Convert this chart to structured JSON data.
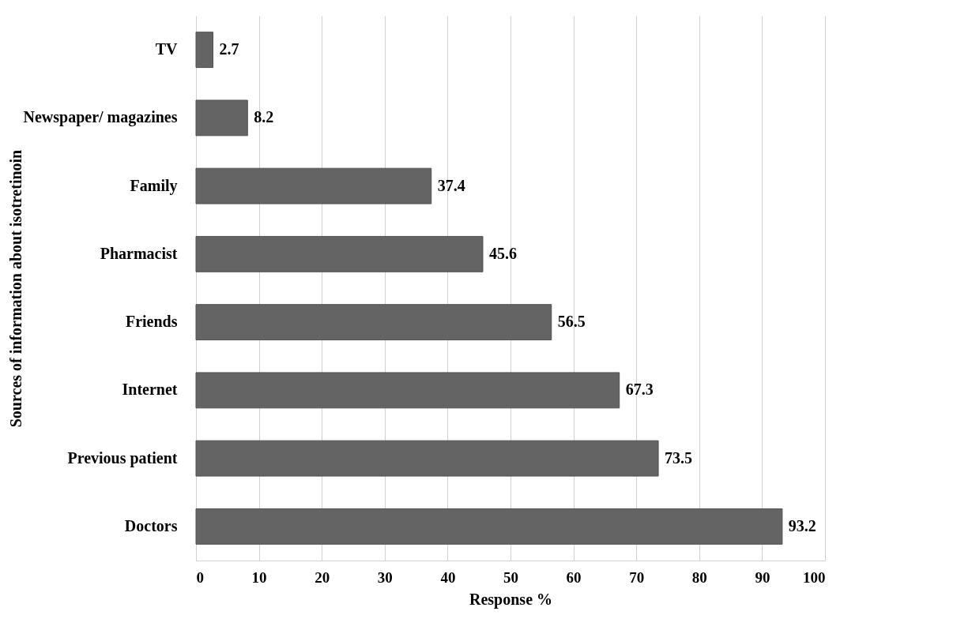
{
  "chart_data": {
    "type": "bar",
    "orientation": "horizontal",
    "xlabel": "Response %",
    "ylabel": "Sources of information about isotretinoin",
    "categories": [
      "TV",
      "Newspaper/ magazines",
      "Family",
      "Pharmacist",
      "Friends",
      "Internet",
      "Previous patient",
      "Doctors"
    ],
    "values": [
      2.7,
      8.2,
      37.4,
      45.6,
      56.5,
      67.3,
      73.5,
      93.2
    ],
    "color": "#646464",
    "xlim": [
      0,
      100
    ],
    "xticks": [
      0,
      10,
      20,
      30,
      40,
      50,
      60,
      70,
      80,
      90,
      100
    ],
    "grid": "x",
    "data_labels": true
  }
}
